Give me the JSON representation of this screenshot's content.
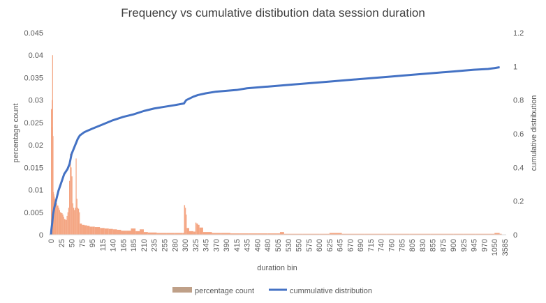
{
  "chart_data": {
    "type": "bar+line",
    "title": "Frequency vs cumulative distibution data session duration",
    "xlabel": "duration bin",
    "ylabel_left": "percentage count",
    "ylabel_right": "cumulative distribution",
    "ylim_left": [
      0,
      0.045
    ],
    "ylim_right": [
      0,
      1.2
    ],
    "yticks_left": [
      "0",
      "0.005",
      "0.01",
      "0.015",
      "0.02",
      "0.025",
      "0.03",
      "0.035",
      "0.04",
      "0.045"
    ],
    "yticks_right": [
      "0",
      "0.2",
      "0.4",
      "0.6",
      "0.8",
      "1",
      "1.2"
    ],
    "xtick_labels": [
      "0",
      "25",
      "50",
      "75",
      "95",
      "115",
      "140",
      "165",
      "185",
      "210",
      "235",
      "255",
      "280",
      "300",
      "325",
      "345",
      "370",
      "390",
      "415",
      "435",
      "460",
      "480",
      "505",
      "530",
      "550",
      "575",
      "600",
      "625",
      "645",
      "670",
      "690",
      "715",
      "740",
      "760",
      "785",
      "805",
      "830",
      "855",
      "875",
      "900",
      "925",
      "945",
      "970",
      "1050",
      "3585"
    ],
    "grid": false,
    "legend_position": "bottom",
    "series": [
      {
        "name": "percentage count",
        "type": "bar",
        "color": "#F4A582",
        "points": [
          [
            0,
            0.028
          ],
          [
            1,
            0.024
          ],
          [
            2,
            0.03
          ],
          [
            3,
            0.04
          ],
          [
            4,
            0.022
          ],
          [
            5,
            0.0095
          ],
          [
            6,
            0.009
          ],
          [
            7,
            0.0085
          ],
          [
            8,
            0.008
          ],
          [
            10,
            0.0075
          ],
          [
            12,
            0.007
          ],
          [
            15,
            0.0065
          ],
          [
            18,
            0.006
          ],
          [
            20,
            0.0055
          ],
          [
            22,
            0.005
          ],
          [
            25,
            0.0048
          ],
          [
            28,
            0.0045
          ],
          [
            30,
            0.004
          ],
          [
            32,
            0.0035
          ],
          [
            35,
            0.0033
          ],
          [
            38,
            0.0042
          ],
          [
            40,
            0.005
          ],
          [
            42,
            0.006
          ],
          [
            44,
            0.012
          ],
          [
            46,
            0.018
          ],
          [
            48,
            0.015
          ],
          [
            50,
            0.013
          ],
          [
            52,
            0.007
          ],
          [
            54,
            0.006
          ],
          [
            56,
            0.0055
          ],
          [
            58,
            0.006
          ],
          [
            60,
            0.017
          ],
          [
            62,
            0.008
          ],
          [
            64,
            0.006
          ],
          [
            66,
            0.0058
          ],
          [
            68,
            0.005
          ],
          [
            70,
            0.0025
          ],
          [
            75,
            0.0022
          ],
          [
            80,
            0.0021
          ],
          [
            85,
            0.002
          ],
          [
            90,
            0.0018
          ],
          [
            95,
            0.0018
          ],
          [
            100,
            0.0017
          ],
          [
            110,
            0.0015
          ],
          [
            120,
            0.0014
          ],
          [
            130,
            0.0013
          ],
          [
            140,
            0.0012
          ],
          [
            150,
            0.0011
          ],
          [
            160,
            0.0009
          ],
          [
            170,
            0.0009
          ],
          [
            180,
            0.0014
          ],
          [
            190,
            0.0008
          ],
          [
            200,
            0.0012
          ],
          [
            210,
            0.0006
          ],
          [
            220,
            0.0005
          ],
          [
            240,
            0.0004
          ],
          [
            260,
            0.0004
          ],
          [
            280,
            0.0004
          ],
          [
            295,
            0.0004
          ],
          [
            298,
            0.0066
          ],
          [
            300,
            0.006
          ],
          [
            302,
            0.0045
          ],
          [
            304,
            0.0015
          ],
          [
            310,
            0.0008
          ],
          [
            320,
            0.0007
          ],
          [
            325,
            0.0027
          ],
          [
            327,
            0.0025
          ],
          [
            330,
            0.0022
          ],
          [
            333,
            0.0016
          ],
          [
            340,
            0.0006
          ],
          [
            360,
            0.0004
          ],
          [
            380,
            0.0004
          ],
          [
            400,
            0.0003
          ],
          [
            420,
            0.0003
          ],
          [
            440,
            0.0003
          ],
          [
            460,
            0.0003
          ],
          [
            480,
            0.0003
          ],
          [
            500,
            0.0003
          ],
          [
            510,
            0.0006
          ],
          [
            520,
            0.0002
          ],
          [
            560,
            0.0002
          ],
          [
            600,
            0.0002
          ],
          [
            625,
            0.0004
          ],
          [
            650,
            0.0002
          ],
          [
            700,
            0.0002
          ],
          [
            750,
            0.0002
          ],
          [
            800,
            0.0002
          ],
          [
            850,
            0.0002
          ],
          [
            900,
            0.0002
          ],
          [
            925,
            0.0002
          ],
          [
            950,
            0.0002
          ],
          [
            1000,
            0.0002
          ],
          [
            1050,
            0.0004
          ],
          [
            1060,
            0.0002
          ]
        ]
      },
      {
        "name": "cummulative distribution",
        "type": "line",
        "color": "#4472C4",
        "points": [
          [
            0,
            0.0
          ],
          [
            1,
            0.03
          ],
          [
            3,
            0.07
          ],
          [
            5,
            0.12
          ],
          [
            8,
            0.16
          ],
          [
            12,
            0.2
          ],
          [
            18,
            0.26
          ],
          [
            25,
            0.31
          ],
          [
            32,
            0.36
          ],
          [
            40,
            0.39
          ],
          [
            45,
            0.42
          ],
          [
            50,
            0.48
          ],
          [
            55,
            0.51
          ],
          [
            60,
            0.54
          ],
          [
            65,
            0.57
          ],
          [
            70,
            0.59
          ],
          [
            80,
            0.61
          ],
          [
            95,
            0.63
          ],
          [
            115,
            0.655
          ],
          [
            140,
            0.68
          ],
          [
            165,
            0.7
          ],
          [
            185,
            0.715
          ],
          [
            210,
            0.735
          ],
          [
            235,
            0.75
          ],
          [
            255,
            0.76
          ],
          [
            280,
            0.77
          ],
          [
            298,
            0.78
          ],
          [
            300,
            0.79
          ],
          [
            303,
            0.8
          ],
          [
            320,
            0.82
          ],
          [
            330,
            0.83
          ],
          [
            345,
            0.84
          ],
          [
            370,
            0.85
          ],
          [
            390,
            0.855
          ],
          [
            415,
            0.86
          ],
          [
            435,
            0.87
          ],
          [
            460,
            0.875
          ],
          [
            480,
            0.88
          ],
          [
            505,
            0.885
          ],
          [
            530,
            0.89
          ],
          [
            575,
            0.9
          ],
          [
            625,
            0.91
          ],
          [
            670,
            0.92
          ],
          [
            715,
            0.93
          ],
          [
            760,
            0.94
          ],
          [
            805,
            0.95
          ],
          [
            855,
            0.96
          ],
          [
            900,
            0.97
          ],
          [
            945,
            0.98
          ],
          [
            1000,
            0.985
          ],
          [
            1050,
            0.99
          ],
          [
            1060,
            0.995
          ]
        ]
      }
    ]
  }
}
